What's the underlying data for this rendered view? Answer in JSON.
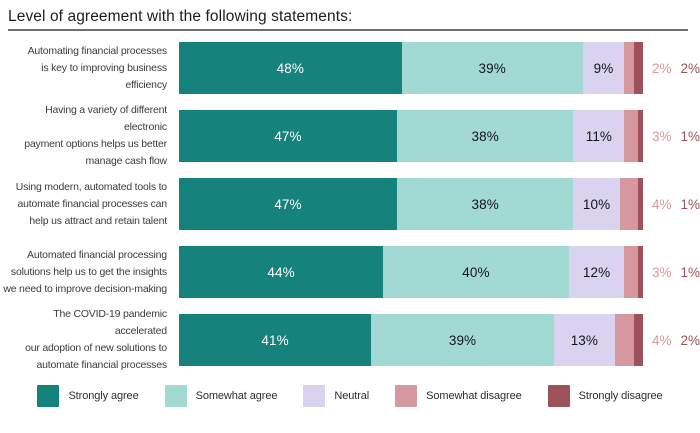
{
  "title": "Level of agreement with the following statements:",
  "chart_data": {
    "type": "bar",
    "stacked": true,
    "orientation": "horizontal",
    "value_suffix": "%",
    "axis_range": [
      0,
      100
    ],
    "grid": false,
    "legend_position": "bottom",
    "categories": [
      "Automating financial processes\nis key to improving business\nefficiency",
      "Having a variety of different electronic\npayment options helps us better\nmanage cash flow",
      "Using modern, automated tools to\nautomate financial processes can\nhelp us attract and retain talent",
      "Automated financial processing\nsolutions help us to get the insights\nwe need to improve decision-making",
      "The COVID-19 pandemic accelerated\nour adoption of new solutions to\nautomate financial processes"
    ],
    "series": [
      {
        "name": "Strongly agree",
        "color": "#16827c",
        "label_inside": true,
        "label_color": "#ffffff",
        "values": [
          48,
          47,
          47,
          44,
          41
        ]
      },
      {
        "name": "Somewhat agree",
        "color": "#a2d9d2",
        "label_inside": true,
        "label_color": "#14141c",
        "values": [
          39,
          38,
          38,
          40,
          39
        ]
      },
      {
        "name": "Neutral",
        "color": "#d9d3f0",
        "label_inside": true,
        "label_color": "#14141c",
        "values": [
          9,
          11,
          10,
          12,
          13
        ]
      },
      {
        "name": "Somewhat disagree",
        "color": "#d6979e",
        "label_inside": false,
        "label_color": "#d6979e",
        "values": [
          2,
          3,
          4,
          3,
          4
        ]
      },
      {
        "name": "Strongly disagree",
        "color": "#9c515b",
        "label_inside": false,
        "label_color": "#9c515b",
        "values": [
          2,
          1,
          1,
          1,
          2
        ]
      }
    ]
  }
}
